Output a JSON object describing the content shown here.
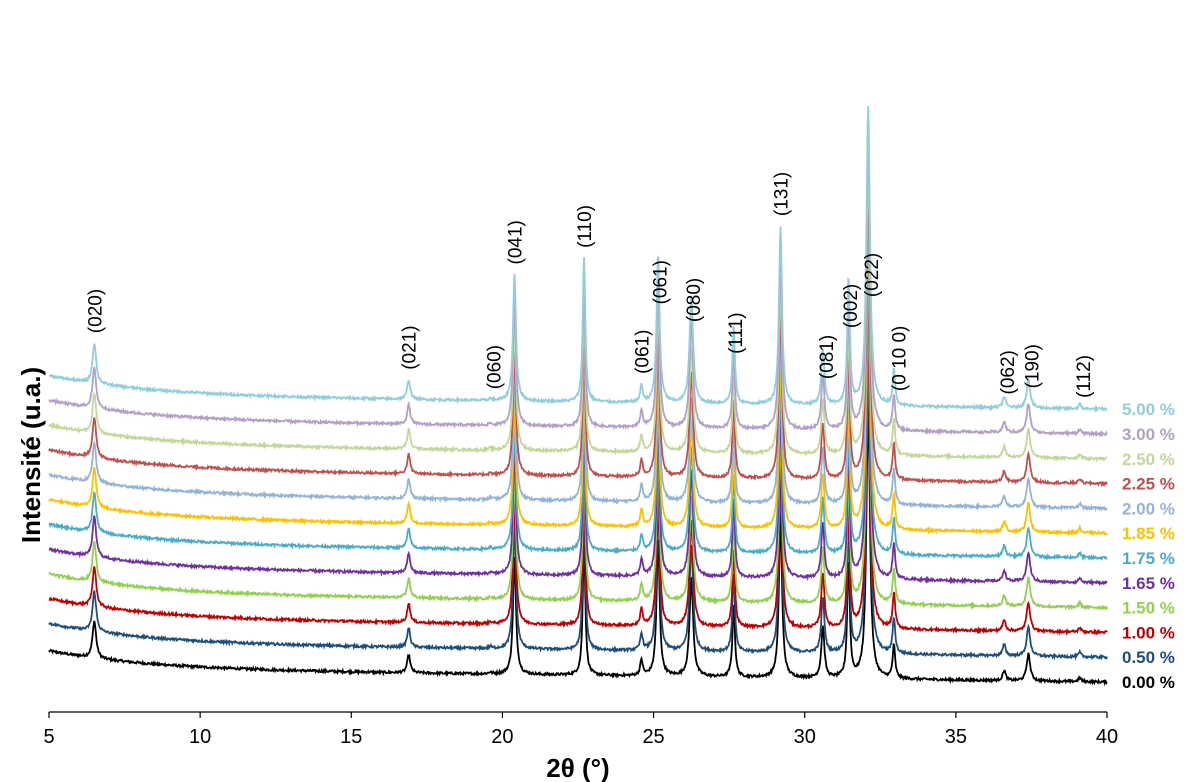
{
  "chart_data": {
    "type": "line",
    "xlabel": "2θ (°)",
    "ylabel": "Intensité (u.a.)",
    "xlim": [
      5,
      40
    ],
    "x_ticks": [
      "5",
      "10",
      "15",
      "20",
      "25",
      "30",
      "35",
      "40"
    ],
    "legend_placement": "right, aligned with curve ends",
    "peak_labels": [
      {
        "label": "(020)",
        "x": 6.5
      },
      {
        "label": "(021)",
        "x": 16.9
      },
      {
        "label": "(060)",
        "x": 19.7
      },
      {
        "label": "(041)",
        "x": 20.4
      },
      {
        "label": "(110)",
        "x": 22.7
      },
      {
        "label": "(061)",
        "x": 24.6
      },
      {
        "label": "(061)",
        "x": 25.2
      },
      {
        "label": "(080)",
        "x": 26.3
      },
      {
        "label": "(111)",
        "x": 27.7
      },
      {
        "label": "(131)",
        "x": 29.2
      },
      {
        "label": "(081)",
        "x": 30.7
      },
      {
        "label": "(002)",
        "x": 31.5
      },
      {
        "label": "(022)",
        "x": 32.2
      },
      {
        "label": "(0 10 0)",
        "x": 33.1
      },
      {
        "label": "(062)",
        "x": 36.7
      },
      {
        "label": "(190)",
        "x": 37.5
      },
      {
        "label": "(112)",
        "x": 39.2
      }
    ],
    "peaks": [
      {
        "x": 6.5,
        "h": 0.62,
        "w": 0.07
      },
      {
        "x": 16.9,
        "h": 0.3,
        "w": 0.06
      },
      {
        "x": 19.6,
        "h": 0.03,
        "w": 0.05
      },
      {
        "x": 20.4,
        "h": 1.95,
        "w": 0.06
      },
      {
        "x": 22.7,
        "h": 2.22,
        "w": 0.05
      },
      {
        "x": 24.6,
        "h": 0.26,
        "w": 0.05
      },
      {
        "x": 25.15,
        "h": 2.3,
        "w": 0.06
      },
      {
        "x": 26.25,
        "h": 1.65,
        "w": 0.07
      },
      {
        "x": 27.65,
        "h": 1.22,
        "w": 0.05
      },
      {
        "x": 29.2,
        "h": 2.75,
        "w": 0.06
      },
      {
        "x": 30.6,
        "h": 0.85,
        "w": 0.06
      },
      {
        "x": 31.45,
        "h": 1.95,
        "w": 0.05
      },
      {
        "x": 32.1,
        "h": 4.6,
        "w": 0.07
      },
      {
        "x": 32.95,
        "h": 0.55,
        "w": 0.05
      },
      {
        "x": 36.6,
        "h": 0.17,
        "w": 0.06
      },
      {
        "x": 37.4,
        "h": 0.45,
        "w": 0.07
      },
      {
        "x": 39.1,
        "h": 0.07,
        "w": 0.05
      }
    ],
    "series": [
      {
        "name": "0.00 %",
        "color": "#000000",
        "offset": 0
      },
      {
        "name": "0.50 %",
        "color": "#1f4e79",
        "offset": 1
      },
      {
        "name": "1.00 %",
        "color": "#c00000",
        "offset": 2
      },
      {
        "name": "1.50 %",
        "color": "#92d050",
        "offset": 3
      },
      {
        "name": "1.65 %",
        "color": "#7030a0",
        "offset": 4
      },
      {
        "name": "1.75 %",
        "color": "#4bacc6",
        "offset": 5
      },
      {
        "name": "1.85 %",
        "color": "#ffc000",
        "offset": 6
      },
      {
        "name": "2.00 %",
        "color": "#95b3d7",
        "offset": 7
      },
      {
        "name": "2.25 %",
        "color": "#c0504d",
        "offset": 8
      },
      {
        "name": "2.50 %",
        "color": "#c4d79b",
        "offset": 9
      },
      {
        "name": "3.00 %",
        "color": "#b1a0c7",
        "offset": 10
      },
      {
        "name": "5.00 %",
        "color": "#92cddc",
        "offset": 11
      }
    ]
  }
}
